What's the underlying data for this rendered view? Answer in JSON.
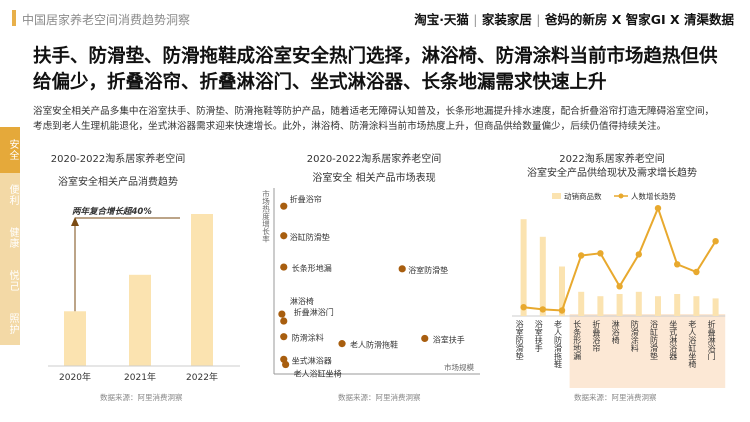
{
  "header": {
    "section_title": "中国居家养老空间消费趋势洞察",
    "brands": [
      "淘宝·天猫",
      "家装家居",
      "爸妈的新房",
      "X",
      "智家GI",
      "X",
      "清渠数据"
    ]
  },
  "headline": "扶手、防滑垫、防滑拖鞋成浴室安全热门选择，淋浴椅、防滑涂料当前市场趋热但供给偏少，折叠浴帘、折叠淋浴门、坐式淋浴器、长条地漏需求快速上升",
  "description": "浴室安全相关产品多集中在浴室扶手、防滑垫、防滑拖鞋等防护产品，随着适老无障碍认知普及，长条形地漏提升排水速度，配合折叠浴帘打造无障碍浴室空间，考虑到老人生理机能退化，坐式淋浴器需求迎来快速增长。此外，淋浴椅、防滑涂料当前市场热度上升，但商品供给数量偏少，后续仍值得持续关注。",
  "side_tabs": [
    {
      "label": "安全",
      "active": true
    },
    {
      "label": "便利",
      "active": false
    },
    {
      "label": "健康",
      "active": false
    },
    {
      "label": "悦己",
      "active": false
    },
    {
      "label": "照护",
      "active": false
    }
  ],
  "colors": {
    "accent": "#e5a93a",
    "bar": "#fbe3b0",
    "line": "#e8a92e",
    "scatter_dot": "#a85e0f",
    "highlight_bg": "#fbe0c7"
  },
  "chart_data": [
    {
      "type": "bar",
      "title": "2020-2022淘系居家养老空间",
      "subtitle": "浴室安全相关产品消费趋势",
      "categories": [
        "2020年",
        "2021年",
        "2022年"
      ],
      "values": [
        0.36,
        0.6,
        1.0
      ],
      "annotation": "两年复合增长超40%",
      "source": "数据来源：阿里消费洞察"
    },
    {
      "type": "scatter",
      "title": "2020-2022淘系居家养老空间",
      "subtitle": "浴室安全 相关产品市场表现",
      "ylabel": "市场热度增长率",
      "xlabel": "市场规模",
      "points": [
        {
          "label": "折叠浴帘",
          "x": 0.02,
          "y": 0.93
        },
        {
          "label": "浴缸防滑垫",
          "x": 0.02,
          "y": 0.76
        },
        {
          "label": "长条形地漏",
          "x": 0.02,
          "y": 0.58
        },
        {
          "label": "浴室防滑垫",
          "x": 0.65,
          "y": 0.57
        },
        {
          "label": "淋浴椅",
          "x": 0.01,
          "y": 0.31
        },
        {
          "label": "折叠淋浴门",
          "x": 0.02,
          "y": 0.27
        },
        {
          "label": "防滑涂料",
          "x": 0.02,
          "y": 0.18
        },
        {
          "label": "浴室扶手",
          "x": 0.77,
          "y": 0.17
        },
        {
          "label": "老人防滑拖鞋",
          "x": 0.33,
          "y": 0.14
        },
        {
          "label": "坐式淋浴器",
          "x": 0.02,
          "y": 0.05
        },
        {
          "label": "老人浴缸坐椅",
          "x": 0.03,
          "y": 0.02
        }
      ],
      "source": "数据来源：阿里消费洞察"
    },
    {
      "type": "bar",
      "title": "2022淘系居家养老空间",
      "subtitle": "浴室安全产品供给现状及需求增长趋势",
      "series": [
        {
          "name": "动销商品数",
          "type": "bar",
          "values": [
            0.88,
            0.72,
            0.45,
            0.22,
            0.18,
            0.2,
            0.22,
            0.18,
            0.2,
            0.18,
            0.16
          ]
        },
        {
          "name": "人数增长趋势",
          "type": "line",
          "values": [
            0.08,
            0.06,
            0.05,
            0.55,
            0.57,
            0.27,
            0.56,
            0.98,
            0.47,
            0.4,
            0.68
          ]
        }
      ],
      "categories": [
        "浴室防滑垫",
        "浴室扶手",
        "老人防滑拖鞋",
        "长条形地漏",
        "折叠浴帘",
        "淋浴椅",
        "防滑涂料",
        "浴缸防滑垫",
        "坐式淋浴器",
        "老人浴缸坐椅",
        "折叠淋浴门"
      ],
      "highlight_from": 3,
      "source": "数据来源：阿里消费洞察"
    }
  ]
}
